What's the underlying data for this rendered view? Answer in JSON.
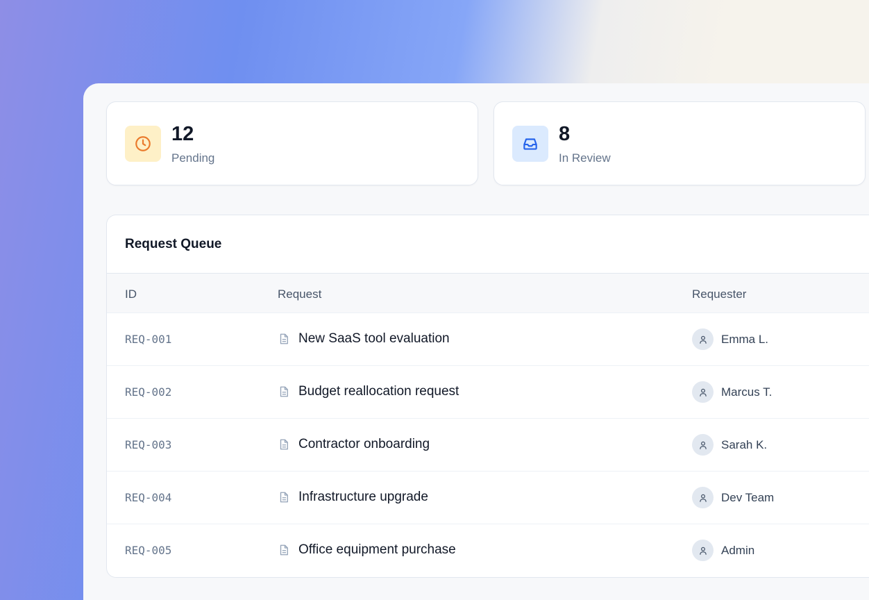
{
  "stats": [
    {
      "value": "12",
      "label": "Pending",
      "icon": "clock-icon",
      "icon_color": "#ea7a2c",
      "bg": "#fef0c7"
    },
    {
      "value": "8",
      "label": "In Review",
      "icon": "inbox-icon",
      "icon_color": "#2563eb",
      "bg": "#dbeafe"
    }
  ],
  "queue": {
    "title": "Request Queue",
    "columns": [
      "ID",
      "Request",
      "Requester"
    ],
    "rows": [
      {
        "id": "REQ-001",
        "request": "New SaaS tool evaluation",
        "requester": "Emma L."
      },
      {
        "id": "REQ-002",
        "request": "Budget reallocation request",
        "requester": "Marcus T."
      },
      {
        "id": "REQ-003",
        "request": "Contractor onboarding",
        "requester": "Sarah K."
      },
      {
        "id": "REQ-004",
        "request": "Infrastructure upgrade",
        "requester": "Dev Team"
      },
      {
        "id": "REQ-005",
        "request": "Office equipment purchase",
        "requester": "Admin"
      }
    ]
  }
}
